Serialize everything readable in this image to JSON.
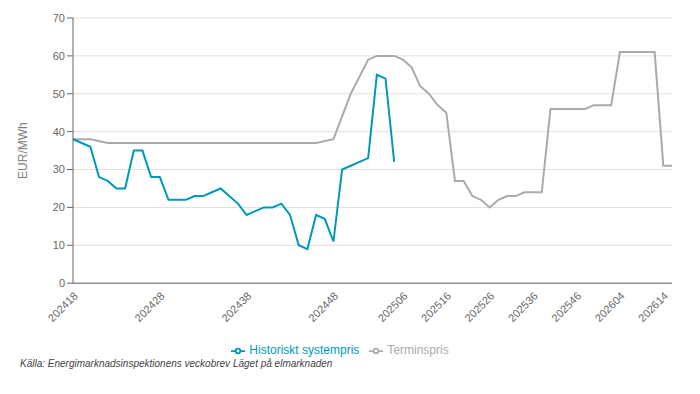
{
  "chart_data": {
    "type": "line",
    "categories": [
      "202418",
      null,
      null,
      null,
      null,
      null,
      null,
      null,
      null,
      null,
      "202428",
      null,
      null,
      null,
      null,
      null,
      null,
      null,
      null,
      null,
      "202438",
      null,
      null,
      null,
      null,
      null,
      null,
      null,
      null,
      null,
      "202448",
      null,
      null,
      null,
      null,
      null,
      null,
      null,
      "202506",
      null,
      null,
      null,
      null,
      "202516",
      null,
      null,
      null,
      null,
      "202526",
      null,
      null,
      null,
      null,
      "202536",
      null,
      null,
      null,
      null,
      "202546",
      null,
      null,
      null,
      null,
      "202604",
      null,
      null,
      null,
      null,
      "202614",
      null
    ],
    "series": [
      {
        "name": "Terminspris",
        "color": "#aaaaaa",
        "values": [
          38,
          null,
          38,
          null,
          37,
          null,
          37,
          null,
          37,
          null,
          37,
          null,
          37,
          null,
          37,
          null,
          37,
          null,
          37,
          null,
          37,
          null,
          37,
          null,
          37,
          null,
          37,
          null,
          37,
          null,
          38,
          null,
          50,
          null,
          59,
          60,
          null,
          60,
          59,
          57,
          52,
          50,
          47,
          45,
          27,
          27,
          23,
          22,
          20,
          22,
          23,
          23,
          24,
          24,
          24,
          46,
          46,
          46,
          46,
          46,
          47,
          47,
          47,
          61,
          61,
          61,
          61,
          61,
          31,
          31
        ]
      },
      {
        "name": "Historiskt systempris",
        "color": "#0099bb",
        "values": [
          38,
          37,
          36,
          28,
          27,
          25,
          25,
          35,
          35,
          28,
          28,
          22,
          22,
          22,
          23,
          23,
          24,
          25,
          23,
          21,
          18,
          19,
          20,
          20,
          21,
          18,
          10,
          9,
          18,
          17,
          11,
          30,
          31,
          32,
          33,
          55,
          54,
          32,
          null,
          null,
          null,
          null,
          null,
          null,
          null,
          null,
          null,
          null,
          null,
          null,
          null,
          null,
          null,
          null,
          null,
          null,
          null,
          null,
          null,
          null,
          null,
          null,
          null,
          null,
          null,
          null,
          null,
          null,
          null,
          null
        ]
      }
    ],
    "ylabel": "EUR/MWh",
    "ylim": [
      0,
      70
    ],
    "yticks": [
      0,
      10,
      20,
      30,
      40,
      50,
      60,
      70
    ],
    "grid": true,
    "legend": "bottom",
    "annotations": [
      "Källa: Energimarknadsinspektionens veckobrev Läget på elmarknaden"
    ]
  }
}
